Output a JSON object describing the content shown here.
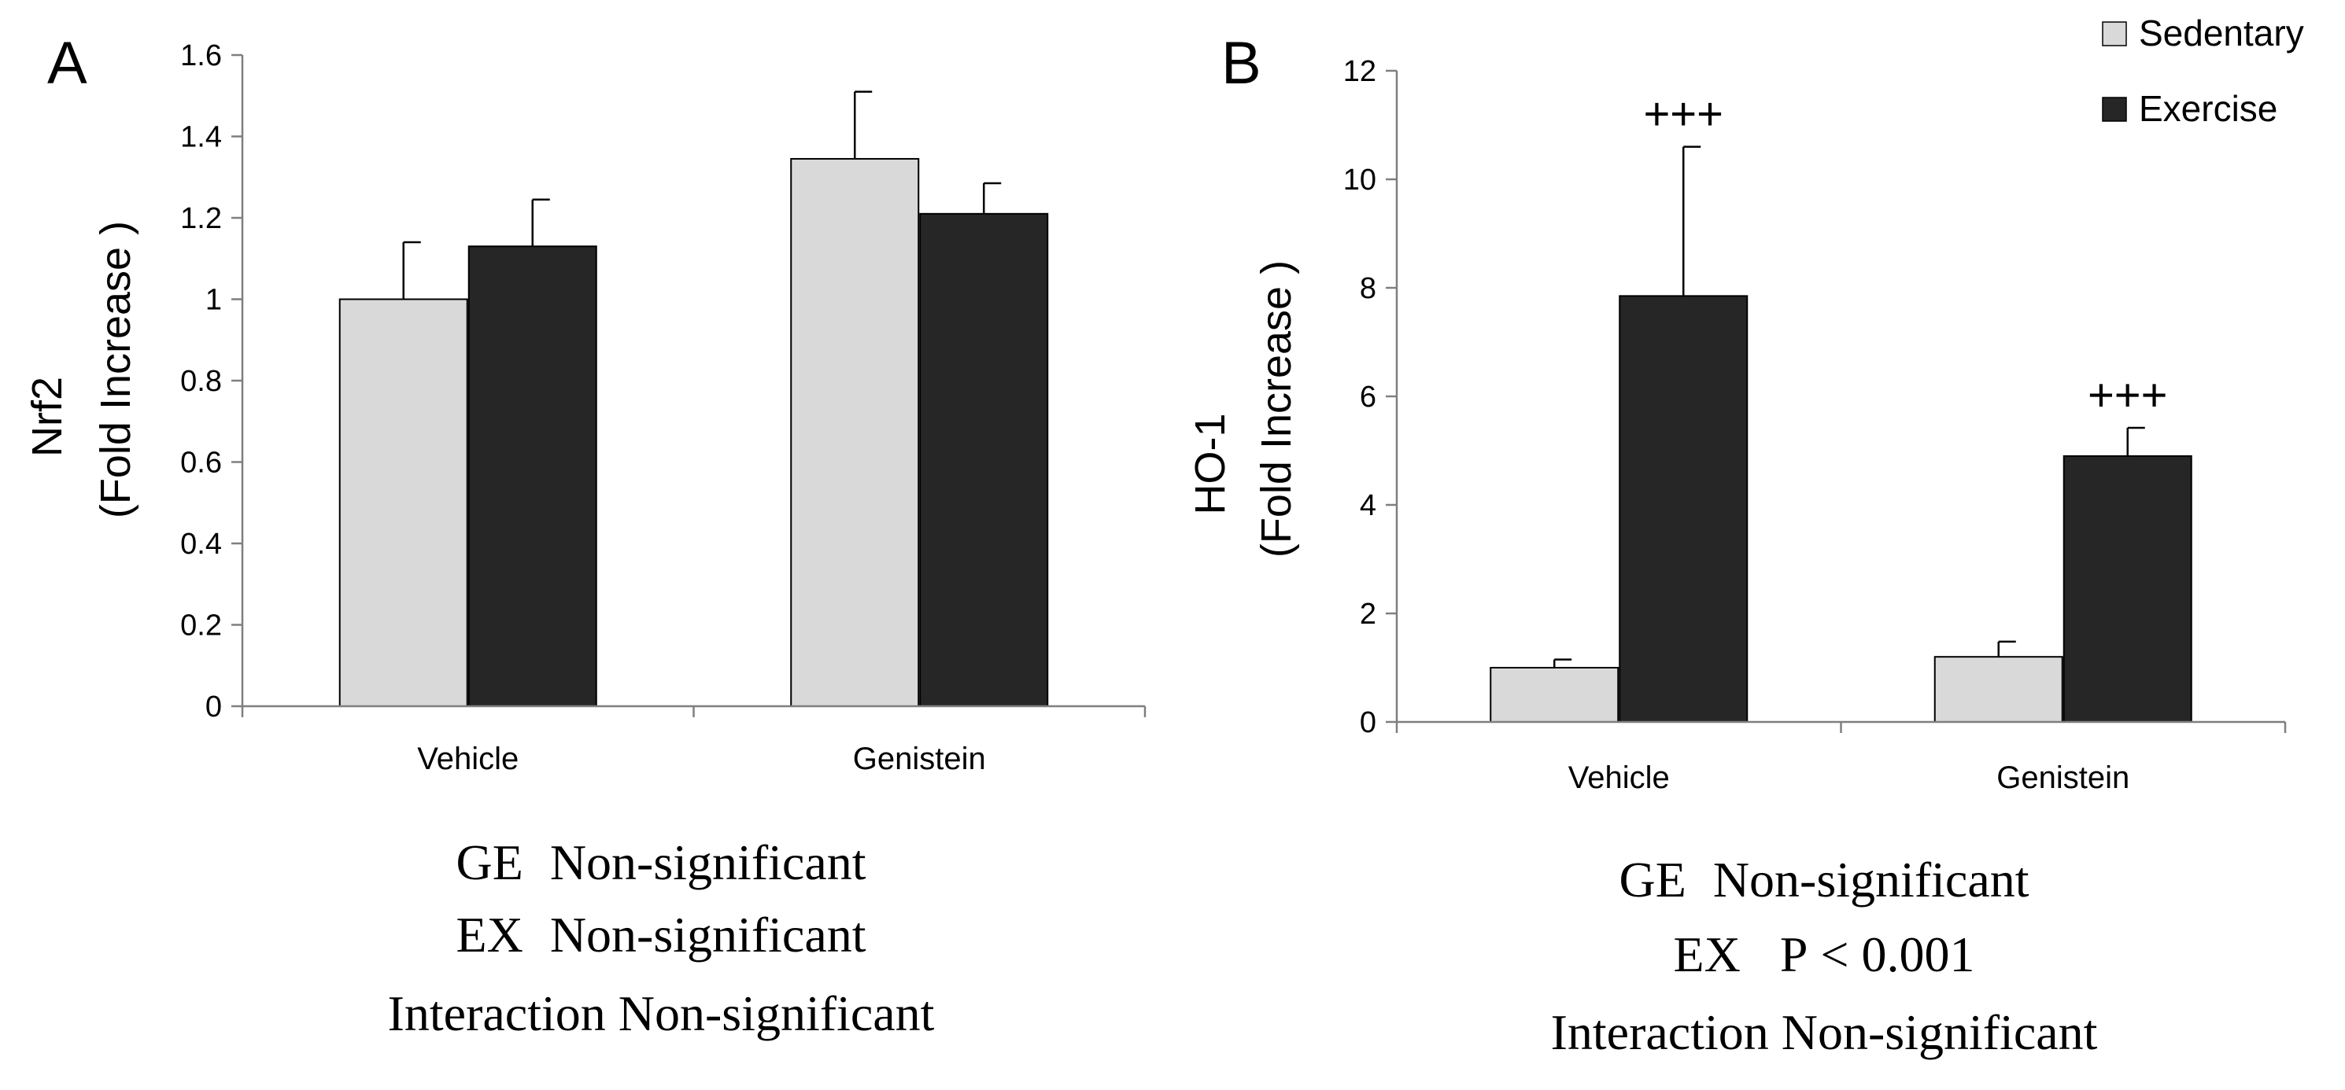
{
  "figure": {
    "colors": {
      "sedentary": "#d9d9d9",
      "exercise": "#262626",
      "axis": "#7f7f7f",
      "bar_outline": "#000000",
      "text": "#000000"
    }
  },
  "chart_data": [
    {
      "panel_label": "A",
      "type": "bar",
      "title": "",
      "ylabel_line1": "Nrf2",
      "ylabel_line2": "(Fold Increase )",
      "categories": [
        "Vehicle",
        "Genistein"
      ],
      "ylim": [
        0,
        1.6
      ],
      "yticks": [
        0,
        0.2,
        0.4,
        0.6,
        0.8,
        1,
        1.2,
        1.4,
        1.6
      ],
      "ytick_labels": [
        "0",
        "0.2",
        "0.4",
        "0.6",
        "0.8",
        "1",
        "1.2",
        "1.4",
        "1.6"
      ],
      "series": [
        {
          "name": "Sedentary",
          "values": [
            1.0,
            1.345
          ],
          "errors": [
            0.14,
            0.165
          ],
          "marks": [
            "",
            ""
          ]
        },
        {
          "name": "Exercise",
          "values": [
            1.13,
            1.21
          ],
          "errors": [
            0.115,
            0.075
          ],
          "marks": [
            "",
            ""
          ]
        }
      ],
      "stats": [
        {
          "term": "GE",
          "result": "Non-significant"
        },
        {
          "term": "EX",
          "result": "Non-significant"
        },
        {
          "term": "Interaction",
          "result": "Non-significant"
        }
      ]
    },
    {
      "panel_label": "B",
      "type": "bar",
      "title": "",
      "ylabel_line1": "HO-1",
      "ylabel_line2": "(Fold Increase )",
      "categories": [
        "Vehicle",
        "Genistein"
      ],
      "ylim": [
        0,
        12
      ],
      "yticks": [
        0,
        2,
        4,
        6,
        8,
        10,
        12
      ],
      "ytick_labels": [
        "0",
        "2",
        "4",
        "6",
        "8",
        "10",
        "12"
      ],
      "legend_position": "top-right",
      "legend": [
        "Sedentary",
        "Exercise"
      ],
      "series": [
        {
          "name": "Sedentary",
          "values": [
            1.0,
            1.2
          ],
          "errors": [
            0.15,
            0.28
          ],
          "marks": [
            "",
            ""
          ]
        },
        {
          "name": "Exercise",
          "values": [
            7.85,
            4.9
          ],
          "errors": [
            2.75,
            0.52
          ],
          "marks": [
            "+++",
            "+++"
          ]
        }
      ],
      "stats": [
        {
          "term": "GE",
          "result": "Non-significant"
        },
        {
          "term": "EX",
          "result": "P < 0.001"
        },
        {
          "term": "Interaction",
          "result": "Non-significant"
        }
      ]
    }
  ]
}
